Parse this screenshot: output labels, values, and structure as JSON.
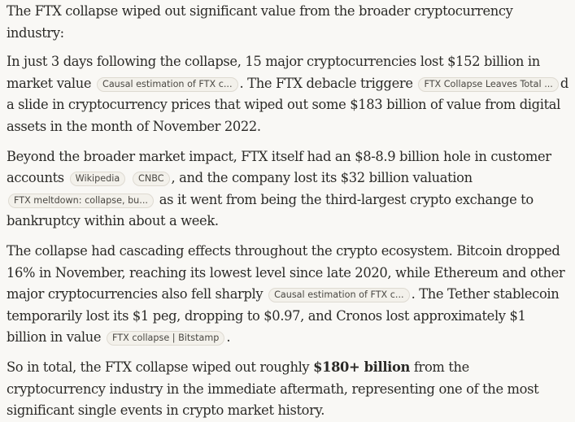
{
  "paragraphs": {
    "p1": "The FTX collapse wiped out significant value from the broader cryptocurrency industry:",
    "p2": {
      "a": "In just 3 days following the collapse, 15 major cryptocurrencies lost $152 billion in market value",
      "chip1": "Causal estimation of FTX c...",
      "b": ". The FTX debacle triggere",
      "chip2": "FTX Collapse Leaves Total ...",
      "c": "d a slide in cryptocurrency prices that wiped out some $183 billion of value from digital assets in the month of November 2022."
    },
    "p3": {
      "a": "Beyond the broader market impact, FTX itself had an $8-8.9 billion hole in customer accounts",
      "chip1": "Wikipedia",
      "chip2": "CNBC",
      "b": ", and the company lost its $32 billion valuation",
      "chip3": "FTX meltdown: collapse, bu...",
      "c": "as it went from being the third-largest crypto exchange to bankruptcy within about a week."
    },
    "p4": {
      "a": "The collapse had cascading effects throughout the crypto ecosystem. Bitcoin dropped 16% in November, reaching its lowest level since late 2020, while Ethereum and other major cryptocurrencies also fell sharply",
      "chip1": "Causal estimation of FTX c...",
      "b": ". The Tether stablecoin temporarily lost its $1 peg, dropping to $0.97, and Cronos lost approximately $1 billion in value",
      "chip2": "FTX collapse | Bitstamp",
      "c": "."
    },
    "p5": {
      "a": "So in total, the FTX collapse wiped out roughly",
      "bold": "$180+ billion",
      "b": "from the cryptocurrency industry in the immediate aftermath, representing one of the most significant single events in crypto market history."
    }
  }
}
